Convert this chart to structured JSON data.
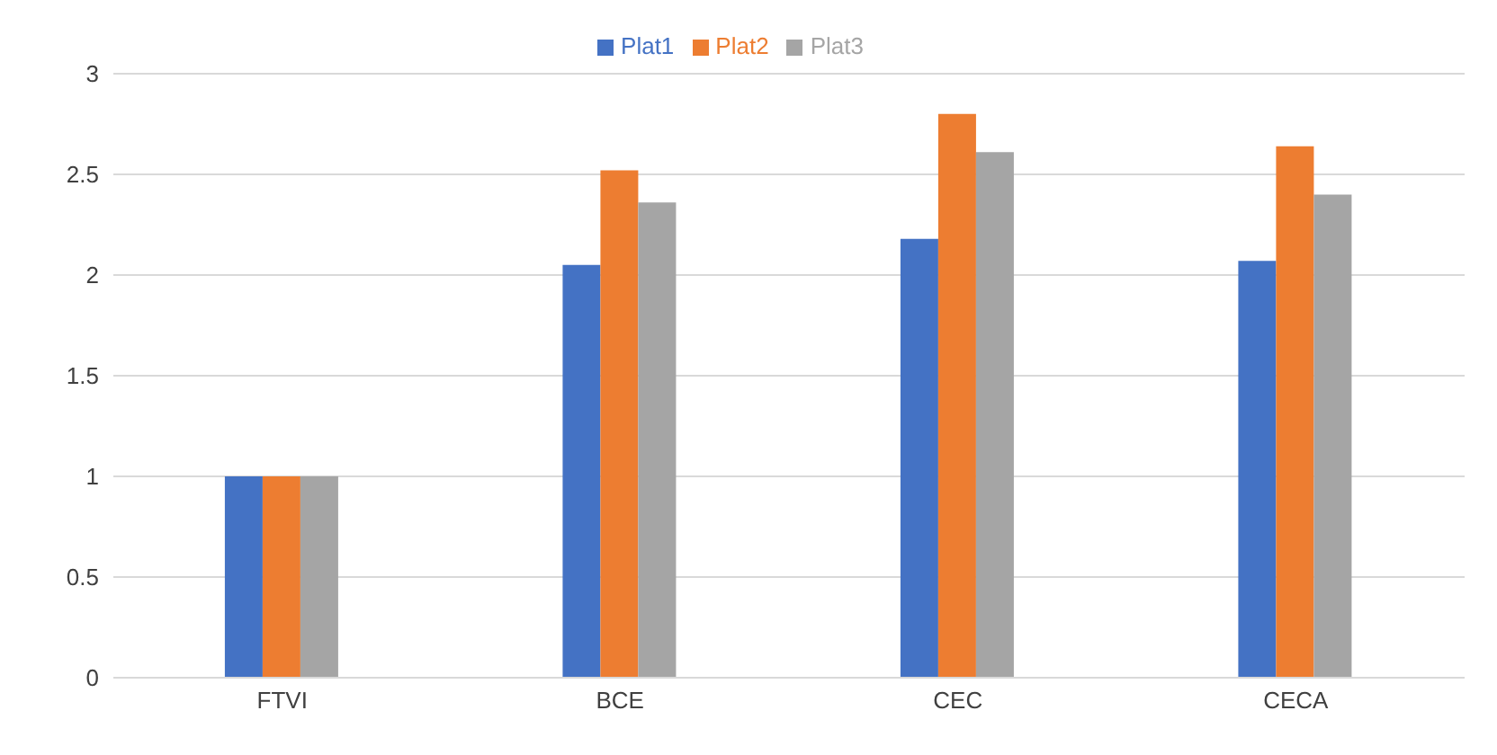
{
  "chart_data": {
    "type": "bar",
    "categories": [
      "FTVI",
      "BCE",
      "CEC",
      "CECA"
    ],
    "series": [
      {
        "name": "Plat1",
        "color": "#4472c4",
        "values": [
          1,
          2.05,
          2.18,
          2.07
        ]
      },
      {
        "name": "Plat2",
        "color": "#ed7d31",
        "values": [
          1,
          2.52,
          2.8,
          2.64
        ]
      },
      {
        "name": "Plat3",
        "color": "#a5a5a5",
        "values": [
          1,
          2.36,
          2.61,
          2.4
        ]
      }
    ],
    "ylim": [
      0,
      3
    ],
    "yticks": [
      0,
      0.5,
      1,
      1.5,
      2,
      2.5,
      3
    ],
    "grid": "y",
    "legend": "top"
  }
}
